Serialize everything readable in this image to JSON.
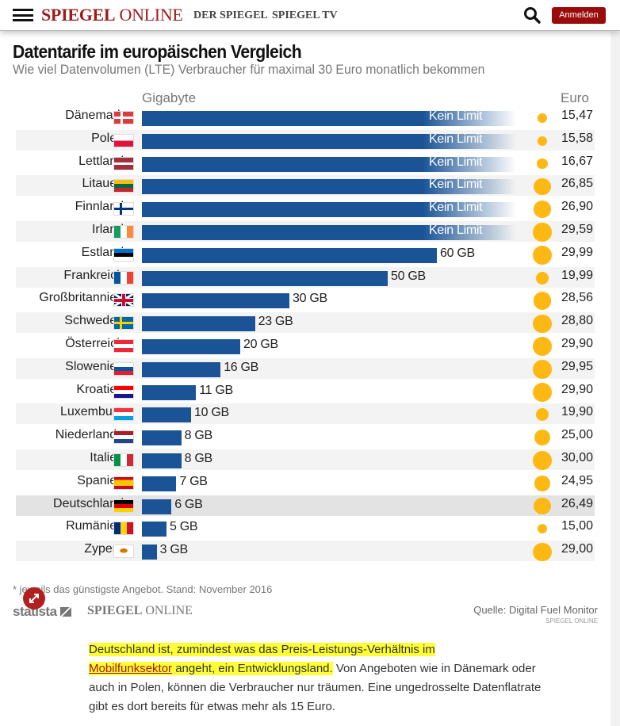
{
  "header": {
    "logo_bold": "SPIEGEL",
    "logo_light": "ONLINE",
    "nav_links": [
      "DER SPIEGEL",
      "SPIEGEL TV"
    ],
    "login_label": "Anmelden",
    "icons": {
      "menu": "hamburger-icon",
      "search": "search-icon"
    }
  },
  "colors": {
    "brand": "#9a0b0b",
    "bar": "#1a5496",
    "dot": "#fdb813",
    "highlight": "#ffff35"
  },
  "chart_data": {
    "type": "bar",
    "orientation": "horizontal",
    "title": "Datentarife im europäischen Vergleich",
    "subtitle": "Wie viel Datenvolumen (LTE) Verbraucher für maximal 30 Euro monatlich bekommen",
    "xlabel": "Gigabyte",
    "price_label": "Euro",
    "unlimited_label": "Kein Limit",
    "unit": "GB",
    "highlighted": "Deutschland",
    "categories": [
      "Dänemark",
      "Polen",
      "Lettland",
      "Litauen",
      "Finnland",
      "Irland",
      "Estland",
      "Frankreich",
      "Großbritannien",
      "Schweden",
      "Österreich",
      "Slowenien",
      "Kroatien",
      "Luxemburg",
      "Niederlande",
      "Italien",
      "Spanien",
      "Deutschland",
      "Rumänien",
      "Zypern"
    ],
    "series": [
      {
        "name": "Gigabyte",
        "values": [
          null,
          null,
          null,
          null,
          null,
          null,
          60,
          50,
          30,
          23,
          20,
          16,
          11,
          10,
          8,
          8,
          7,
          6,
          5,
          3
        ],
        "unlimited": [
          true,
          true,
          true,
          true,
          true,
          true,
          false,
          false,
          false,
          false,
          false,
          false,
          false,
          false,
          false,
          false,
          false,
          false,
          false,
          false
        ]
      },
      {
        "name": "Euro",
        "values": [
          "15,47",
          "15,58",
          "16,67",
          "26,85",
          "26,90",
          "29,59",
          "29,99",
          "19,99",
          "28,56",
          "28,80",
          "29,90",
          "29,95",
          "29,90",
          "19,90",
          "25,00",
          "30,00",
          "24,95",
          "26,49",
          "15,00",
          "29,00"
        ]
      }
    ],
    "flags": [
      "dk",
      "pl",
      "lv",
      "lt",
      "fi",
      "ie",
      "ee",
      "fr",
      "gb",
      "se",
      "at",
      "si",
      "hr",
      "lu",
      "nl",
      "it",
      "es",
      "de",
      "ro",
      "cy"
    ]
  },
  "footer": {
    "note": "* jeweils das günstigste Angebot. Stand: November 2016",
    "statista": "statista",
    "brand_bold": "SPIEGEL",
    "brand_light": "ONLINE",
    "source": "Quelle: Digital Fuel Monitor",
    "source_sub": "SPIEGEL ONLINE"
  },
  "article": {
    "hl1": "Deutschland ist, zumindest was das Preis-Leistungs-Verhältnis im",
    "link": "Mobilfunksektor",
    "hl2": " angeht, ein Entwicklungsland.",
    "rest": " Von Angeboten wie in Dänemark oder auch in Polen, können die Verbraucher nur träumen. Eine ungedrosselte Datenflatrate gibt es dort bereits für etwas mehr als 15 Euro."
  }
}
